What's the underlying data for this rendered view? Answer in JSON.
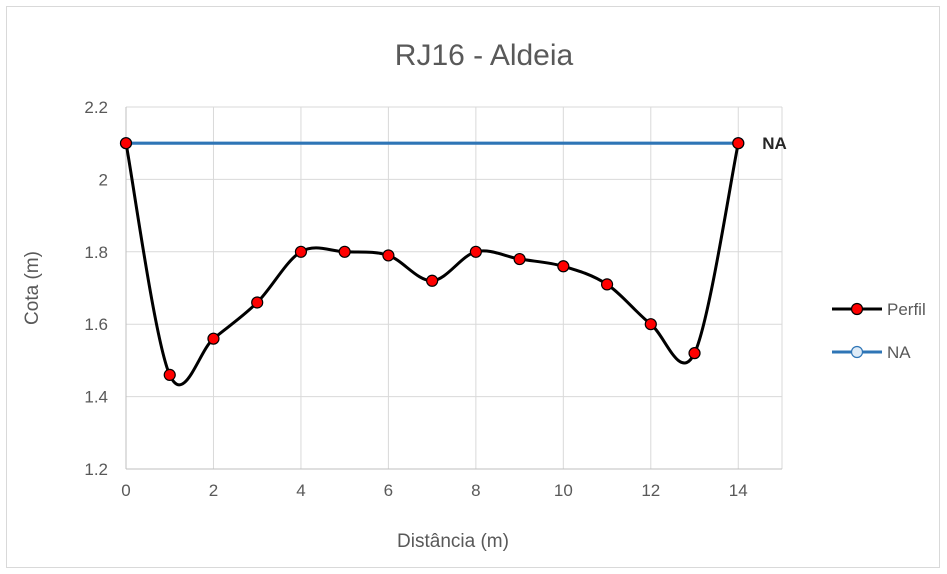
{
  "chart_data": {
    "type": "line",
    "title": "RJ16 - Aldeia",
    "xlabel": "Distância (m)",
    "ylabel": "Cota (m)",
    "xlim": [
      0,
      15
    ],
    "ylim": [
      1.2,
      2.2
    ],
    "x_ticks": [
      0,
      2,
      4,
      6,
      8,
      10,
      12,
      14
    ],
    "y_ticks": [
      1.2,
      1.4,
      1.6,
      1.8,
      2,
      2.2
    ],
    "x_tick_labels": [
      "0",
      "2",
      "4",
      "6",
      "8",
      "10",
      "12",
      "14"
    ],
    "y_tick_labels": [
      "1.2",
      "1.4",
      "1.6",
      "1.8",
      "2",
      "2.2"
    ],
    "grid": true,
    "legend_position": "right",
    "series": [
      {
        "name": "Perfil",
        "color": "#000000",
        "marker_color": "#ff0000",
        "smooth": true,
        "x": [
          0,
          1,
          2,
          3,
          4,
          5,
          6,
          7,
          8,
          9,
          10,
          11,
          12,
          13,
          14
        ],
        "y": [
          2.1,
          1.46,
          1.56,
          1.66,
          1.8,
          1.8,
          1.79,
          1.72,
          1.8,
          1.78,
          1.76,
          1.71,
          1.6,
          1.52,
          2.1
        ]
      },
      {
        "name": "NA",
        "color": "#2e75b6",
        "marker_color": "#deebf7",
        "smooth": false,
        "x": [
          0,
          14
        ],
        "y": [
          2.1,
          2.1
        ]
      }
    ],
    "annotations": [
      {
        "text": "NA",
        "x": 14,
        "y": 2.1
      }
    ]
  }
}
